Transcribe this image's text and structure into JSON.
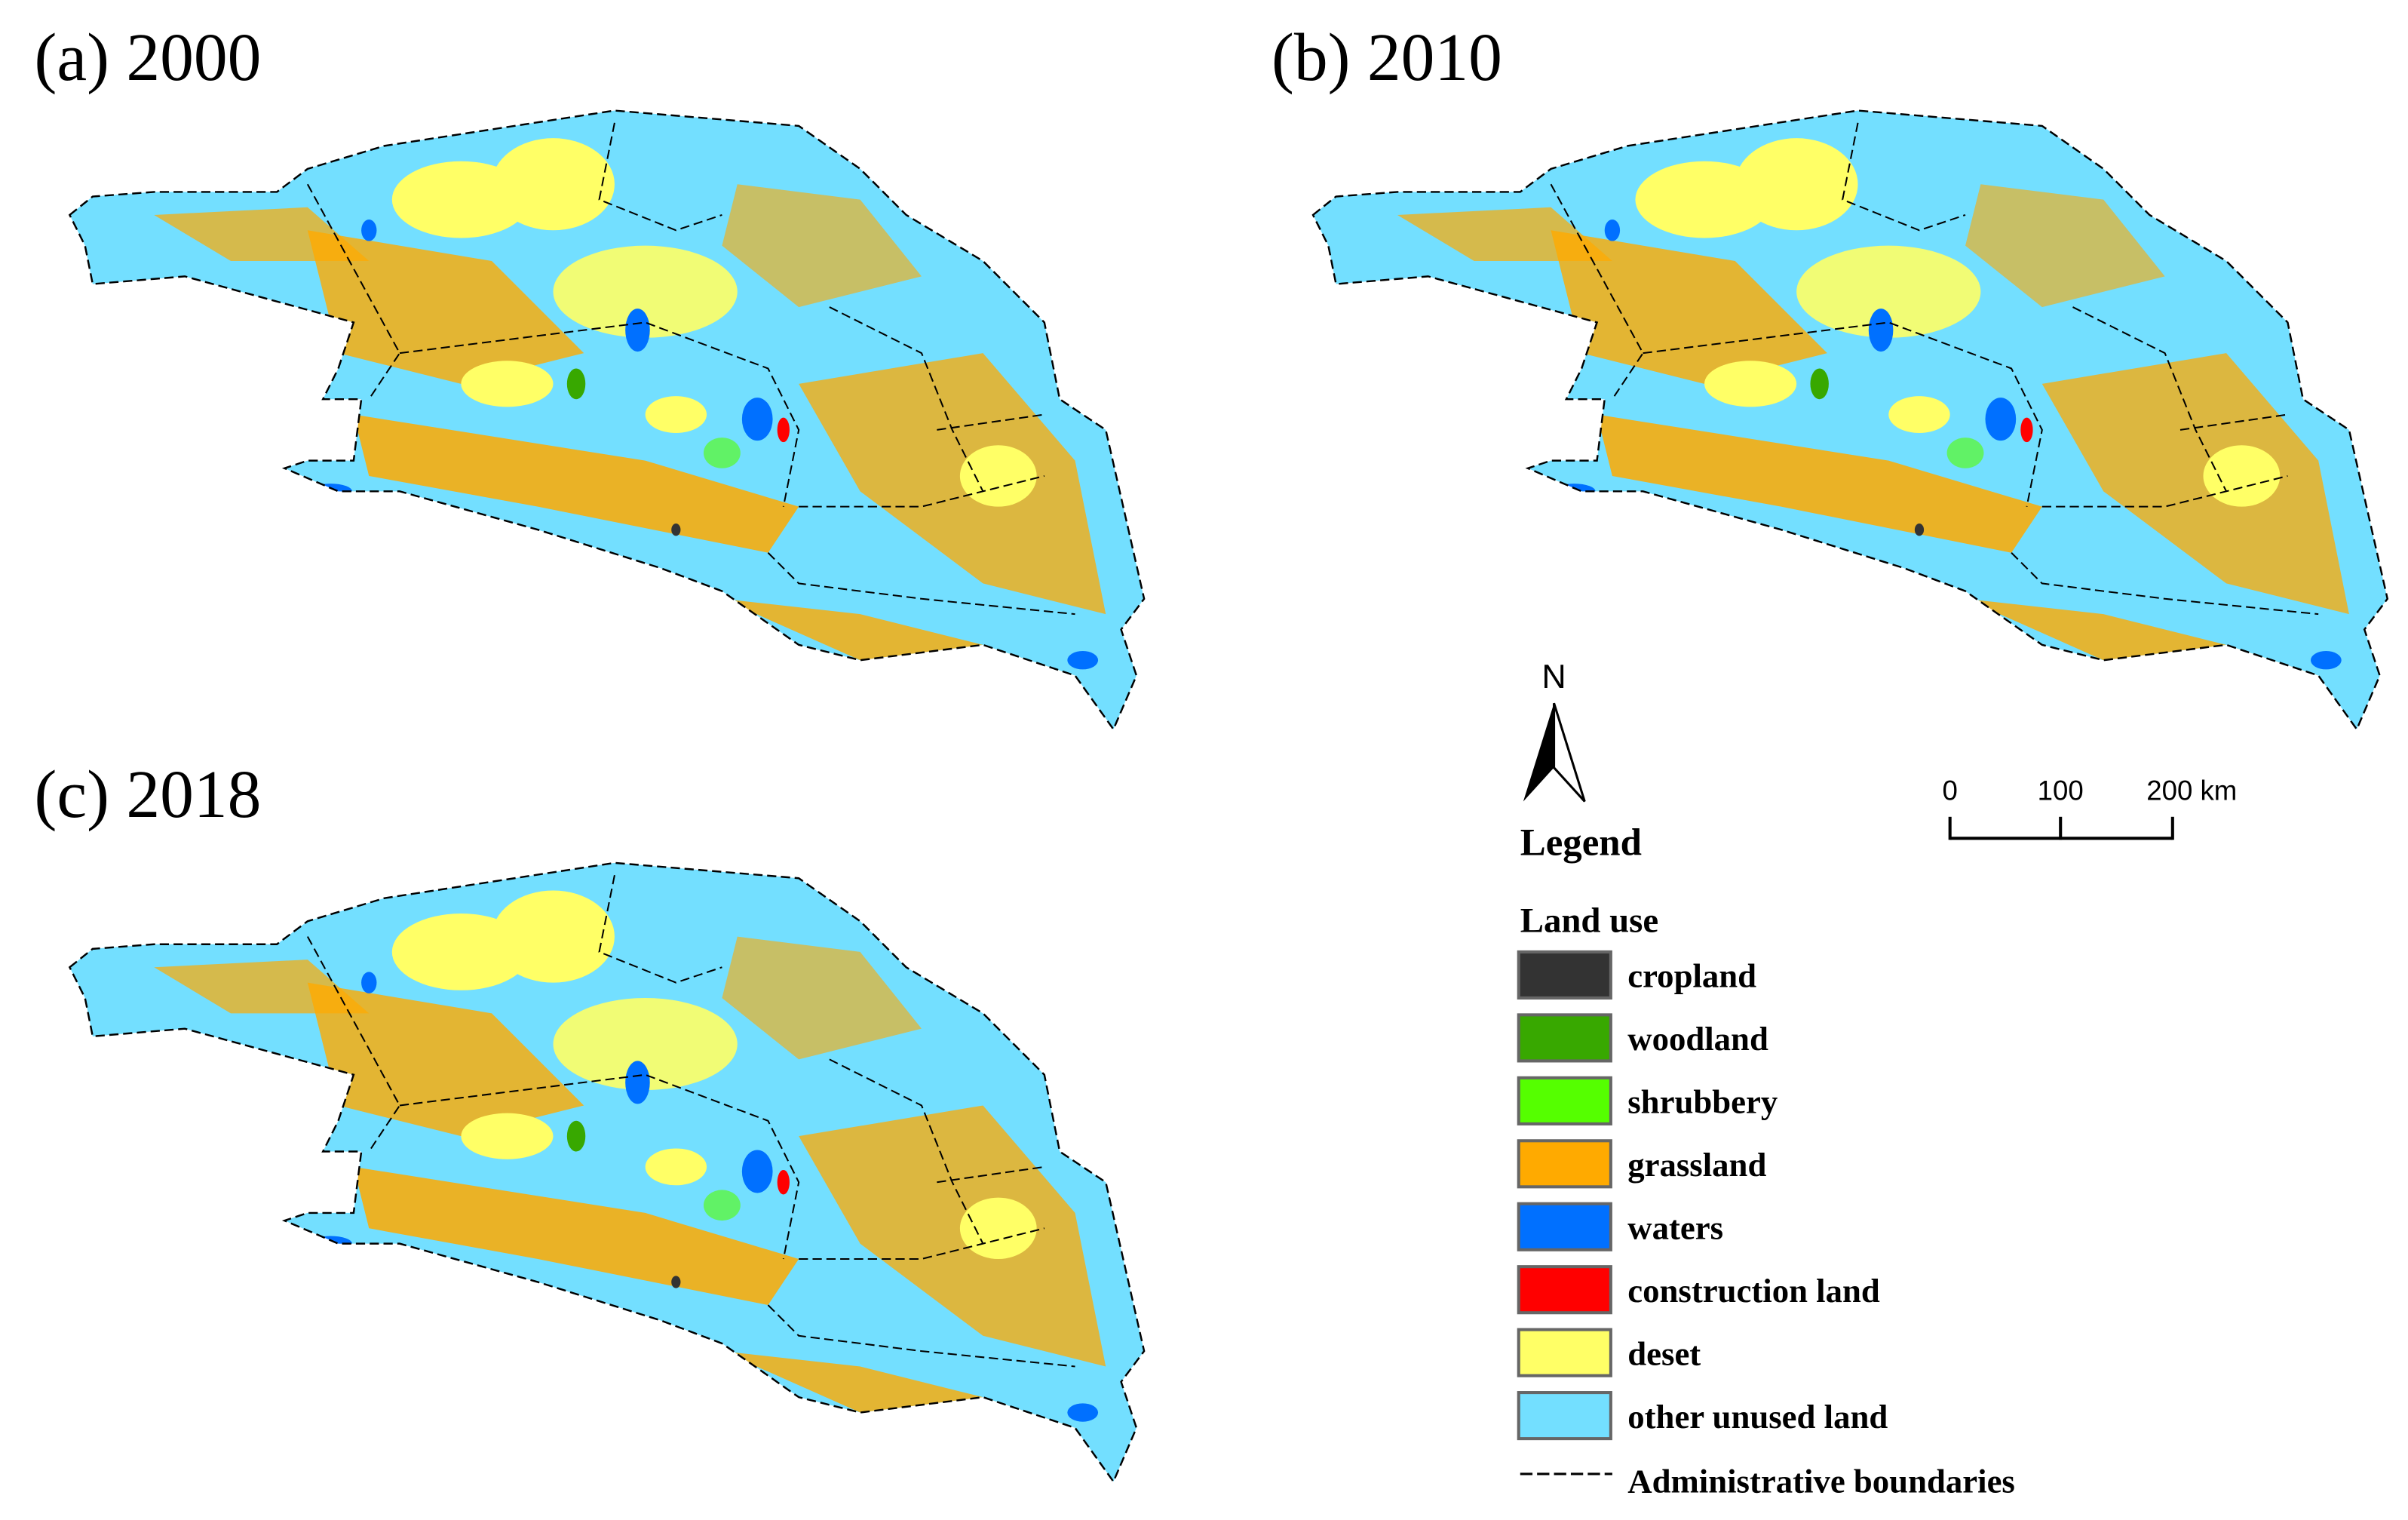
{
  "panels": [
    {
      "label": "(a) 2000"
    },
    {
      "label": "(b) 2010"
    },
    {
      "label": "(c) 2018"
    }
  ],
  "north_arrow": {
    "label": "N"
  },
  "scale_bar": {
    "labels": [
      "0",
      "100",
      "200 km"
    ]
  },
  "legend": {
    "title": "Legend",
    "section": "Land use",
    "items": [
      {
        "label": "cropland",
        "color": "#333333"
      },
      {
        "label": "woodland",
        "color": "#38a800"
      },
      {
        "label": "shrubbery",
        "color": "#55ff00"
      },
      {
        "label": "grassland",
        "color": "#ffaa00"
      },
      {
        "label": "waters",
        "color": "#0070ff"
      },
      {
        "label": "construction land",
        "color": "#ff0000"
      },
      {
        "label": "deset",
        "color": "#ffff66"
      },
      {
        "label": "other unused land",
        "color": "#73dfff"
      }
    ],
    "boundary_label": "Administrative boundaries"
  }
}
